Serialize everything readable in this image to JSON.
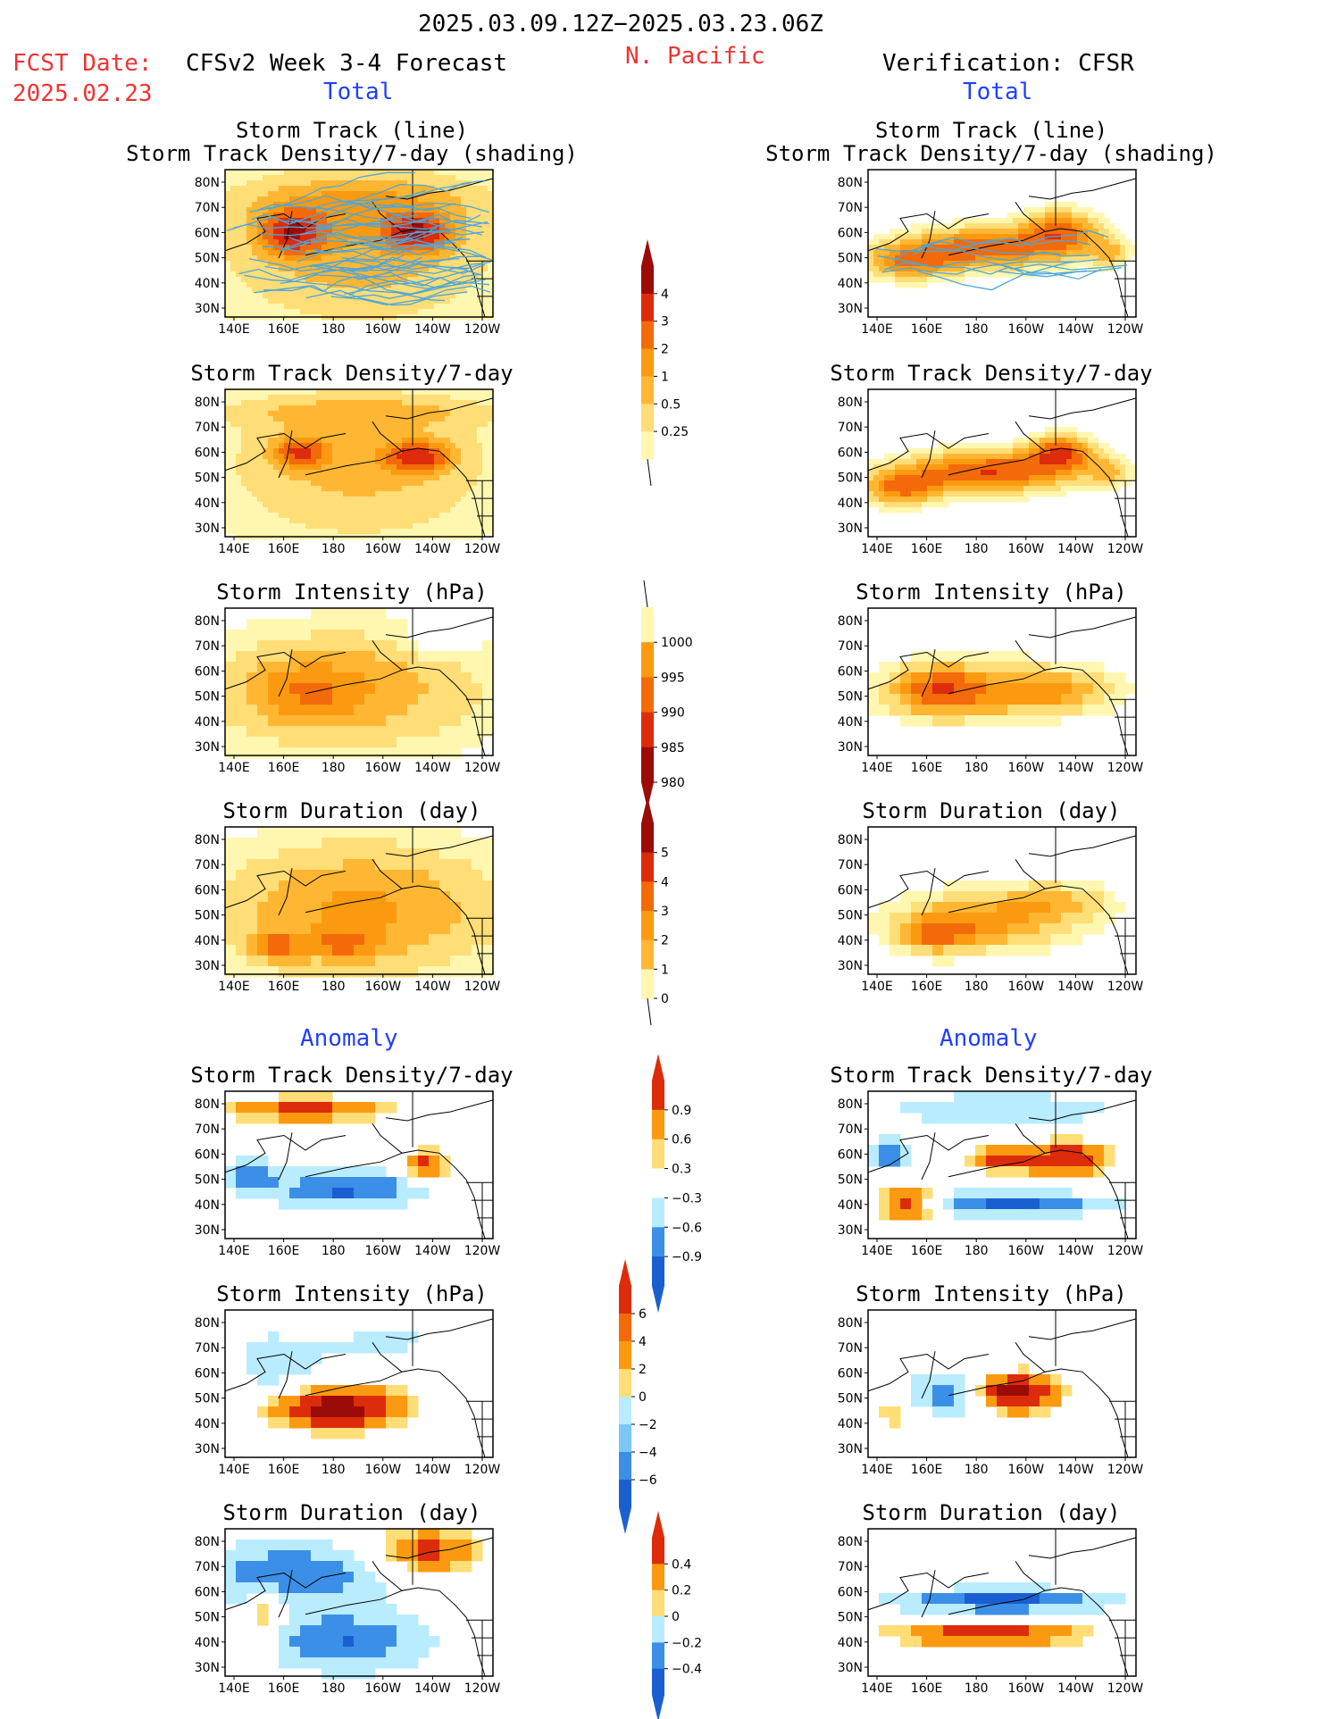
{
  "header": {
    "date_range": "2025.03.09.12Z−2025.03.23.06Z",
    "region": "N. Pacific",
    "fcst_label": "FCST Date:",
    "fcst_date": "2025.02.23",
    "left_title": "CFSv2 Week 3-4 Forecast",
    "right_title": "Verification: CFSR",
    "total_left": "Total",
    "total_right": "Total",
    "anomaly_left": "Anomaly",
    "anomaly_right": "Anomaly"
  },
  "panels": {
    "track_line": "Storm Track (line)",
    "track_density_shading": "Storm Track Density/7-day (shading)",
    "track_density": "Storm Track Density/7-day",
    "intensity": "Storm Intensity (hPa)",
    "duration": "Storm Duration (day)"
  },
  "map_axes": {
    "lon_ticks": [
      "140E",
      "160E",
      "180",
      "160W",
      "140W",
      "120W"
    ],
    "lat_ticks": [
      "80N",
      "70N",
      "60N",
      "50N",
      "40N",
      "30N"
    ]
  },
  "colorbars": {
    "density_total": [
      "4",
      "3",
      "2",
      "1",
      "0.5",
      "0.25"
    ],
    "intensity_total": [
      "1000",
      "995",
      "990",
      "985",
      "980"
    ],
    "duration_total": [
      "5",
      "4",
      "3",
      "2",
      "1",
      "0"
    ],
    "density_anom": [
      "0.9",
      "0.6",
      "0.3",
      "−0.3",
      "−0.6",
      "−0.9"
    ],
    "intensity_anom": [
      "6",
      "4",
      "2",
      "0",
      "−2",
      "−4",
      "−6"
    ],
    "duration_anom": [
      "0.4",
      "0.2",
      "0",
      "−0.2",
      "−0.4"
    ]
  },
  "colors": {
    "title_red": "#ef3333",
    "label_blue": "#1f3fff",
    "warm_scale": [
      "#fff7b0",
      "#ffdd77",
      "#ffb733",
      "#fb9a10",
      "#f26a0a",
      "#dc2c0c",
      "#9b0b08"
    ],
    "cool_scale": [
      "#b9ecff",
      "#7cc7f5",
      "#3b8fe6",
      "#1a5fd2"
    ],
    "track_line": "#4ea6d8"
  }
}
